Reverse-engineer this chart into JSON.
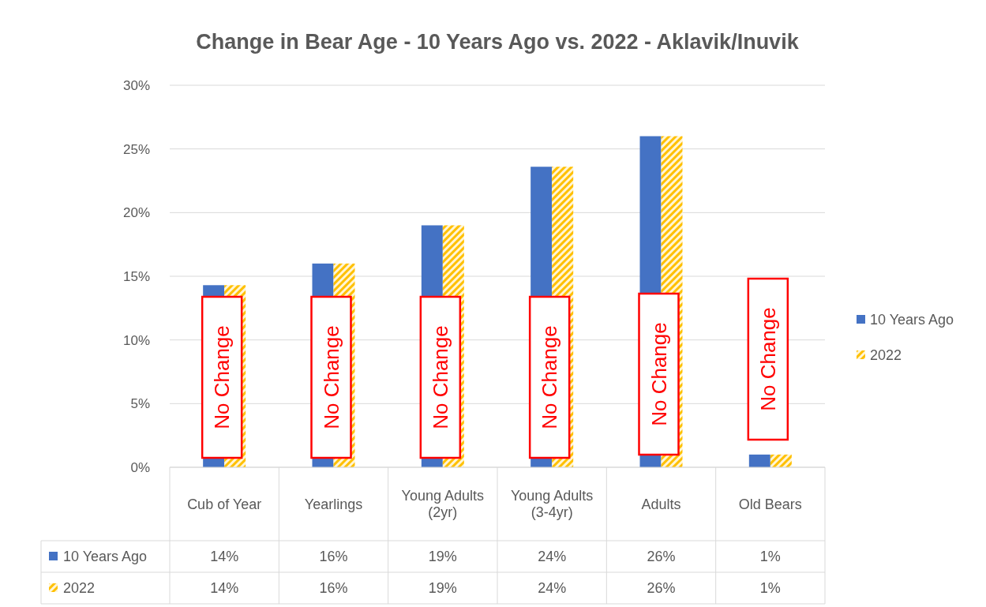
{
  "chart_data": {
    "type": "bar",
    "title": "Change in Bear Age - 10 Years Ago vs. 2022 - Aklavik/Inuvik",
    "categories": [
      "Cub of Year",
      "Yearlings",
      "Young Adults (2yr)",
      "Young Adults (3-4yr)",
      "Adults",
      "Old Bears"
    ],
    "series": [
      {
        "name": "10 Years Ago",
        "color": "#4472c4",
        "values": [
          14.3,
          16,
          19,
          23.6,
          26,
          1
        ],
        "value_labels": [
          "14%",
          "16%",
          "19%",
          "24%",
          "26%",
          "1%"
        ]
      },
      {
        "name": "2022",
        "color": "#ffc000",
        "values": [
          14.3,
          16,
          19,
          23.6,
          26,
          1
        ],
        "value_labels": [
          "14%",
          "16%",
          "19%",
          "24%",
          "26%",
          "1%"
        ]
      }
    ],
    "ylim": [
      0,
      30
    ],
    "yticks": [
      {
        "value": 0,
        "label": "0%"
      },
      {
        "value": 5,
        "label": "5%"
      },
      {
        "value": 10,
        "label": "10%"
      },
      {
        "value": 15,
        "label": "15%"
      },
      {
        "value": 20,
        "label": "20%"
      },
      {
        "value": 25,
        "label": "25%"
      },
      {
        "value": 30,
        "label": "30%"
      }
    ],
    "grid": "y",
    "legend": "right",
    "annotations": [
      "No Change",
      "No Change",
      "No Change",
      "No Change",
      "No Change",
      "No Change"
    ]
  }
}
